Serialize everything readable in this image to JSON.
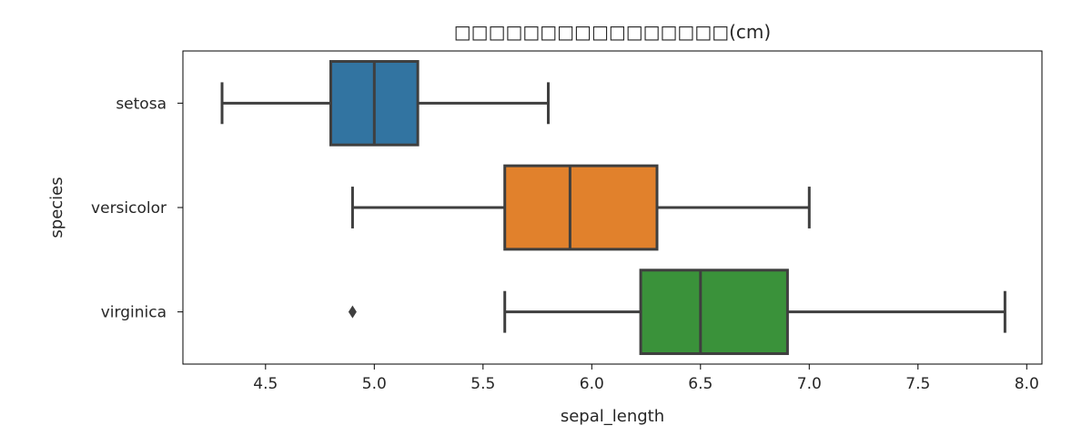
{
  "chart_data": {
    "type": "boxplot",
    "orientation": "horizontal",
    "title": "□□□□□□□□□□□□□□□□(cm)",
    "xlabel": "sepal_length",
    "ylabel": "species",
    "xlim": [
      4.12,
      8.07
    ],
    "xticks": [
      "4.5",
      "5.0",
      "5.5",
      "6.0",
      "6.5",
      "7.0",
      "7.5",
      "8.0"
    ],
    "grid": false,
    "legend": "none",
    "categories": [
      "setosa",
      "versicolor",
      "virginica"
    ],
    "boxes": [
      {
        "category": "setosa",
        "whisker_low": 4.3,
        "q1": 4.8,
        "median": 5.0,
        "q3": 5.2,
        "whisker_high": 5.8,
        "outliers": [],
        "color": "#3274a1"
      },
      {
        "category": "versicolor",
        "whisker_low": 4.9,
        "q1": 5.6,
        "median": 5.9,
        "q3": 6.3,
        "whisker_high": 7.0,
        "outliers": [],
        "color": "#e1812c"
      },
      {
        "category": "virginica",
        "whisker_low": 5.6,
        "q1": 6.225,
        "median": 6.5,
        "q3": 6.9,
        "whisker_high": 7.9,
        "outliers": [
          4.9
        ],
        "color": "#3a923a"
      }
    ],
    "line_color": "#3f3f3f"
  }
}
